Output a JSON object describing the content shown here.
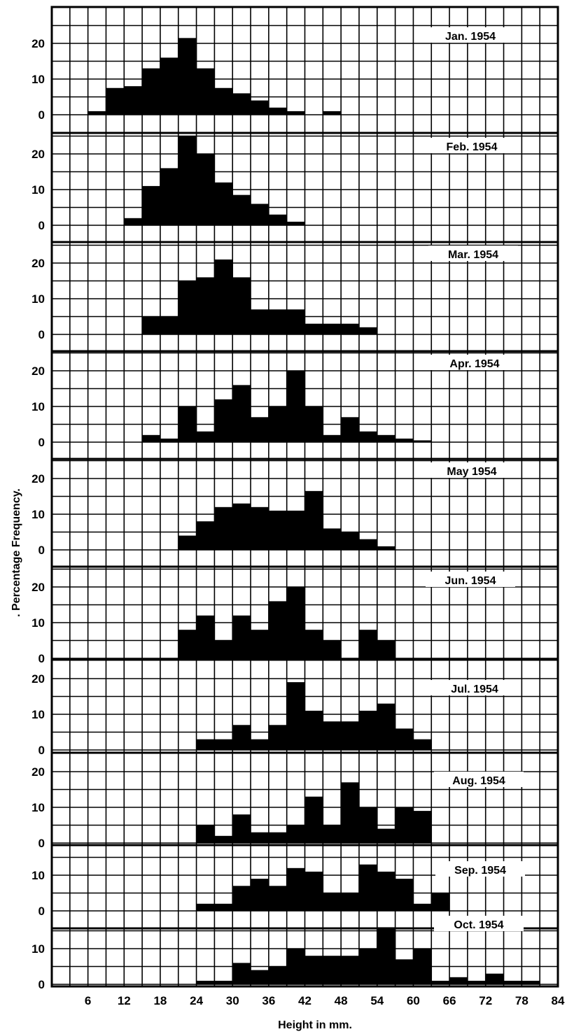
{
  "chart_data": {
    "type": "bar",
    "xlabel": "Height in mm.",
    "ylabel": ". Percentage Frequency.",
    "x_ticks": [
      "6",
      "12",
      "18",
      "24",
      "30",
      "36",
      "42",
      "48",
      "54",
      "60",
      "66",
      "72",
      "78",
      "84"
    ],
    "x_range": [
      0,
      84
    ],
    "bin_width": 3,
    "grid": true,
    "panels": [
      {
        "name": "Jan. 1954",
        "y_ticks": [
          "20",
          "10",
          "0"
        ],
        "ymax": 30,
        "x_start": 6,
        "values": [
          1,
          7.5,
          8,
          13,
          16,
          21.5,
          13,
          7.5,
          6,
          4,
          2,
          1,
          0,
          1
        ]
      },
      {
        "name": "Feb. 1954",
        "y_ticks": [
          "20",
          "10",
          "0"
        ],
        "ymax": 30,
        "x_start": 12,
        "values": [
          2,
          11,
          16,
          25,
          20,
          12,
          8.5,
          6,
          3,
          1
        ]
      },
      {
        "name": "Mar. 1954",
        "y_ticks": [
          "20",
          "10",
          "0"
        ],
        "ymax": 30,
        "x_start": 15,
        "values": [
          5,
          5,
          15,
          16,
          21,
          16,
          7,
          7,
          7,
          3,
          3,
          3,
          2
        ]
      },
      {
        "name": "Apr. 1954",
        "y_ticks": [
          "20",
          "10",
          "0"
        ],
        "ymax": 30,
        "x_start": 15,
        "values": [
          2,
          1,
          10,
          3,
          12,
          16,
          7,
          10,
          20,
          10,
          2,
          7,
          3,
          2,
          1,
          0.5
        ]
      },
      {
        "name": "May 1954",
        "y_ticks": [
          "20",
          "10",
          "0"
        ],
        "ymax": 30,
        "x_start": 21,
        "values": [
          4,
          8,
          12,
          13,
          12,
          11,
          11,
          16.5,
          6,
          5,
          3,
          1
        ]
      },
      {
        "name": "Jun. 1954",
        "y_ticks": [
          "20",
          "10",
          "0"
        ],
        "ymax": 30,
        "x_start": 21,
        "values": [
          8,
          12,
          5,
          12,
          8,
          16,
          20,
          8,
          5,
          0,
          8,
          5
        ]
      },
      {
        "name": "Jul. 1954",
        "y_ticks": [
          "20",
          "10",
          "0"
        ],
        "ymax": 24,
        "x_start": 24,
        "values": [
          3,
          3,
          7,
          3,
          7,
          19,
          11,
          8,
          8,
          11,
          13,
          6,
          3
        ]
      },
      {
        "name": "Aug. 1954",
        "y_ticks": [
          "20",
          "10",
          "0"
        ],
        "ymax": 24,
        "x_start": 24,
        "values": [
          5,
          2,
          8,
          3,
          3,
          5,
          13,
          5,
          17,
          10,
          4,
          10,
          9
        ]
      },
      {
        "name": "Sep. 1954",
        "y_ticks": [
          "10",
          "0"
        ],
        "ymax": 20,
        "x_start": 24,
        "values": [
          2,
          2,
          7,
          9,
          7,
          12,
          11,
          5,
          5,
          13,
          11,
          9,
          2,
          5
        ]
      },
      {
        "name": "Oct. 1954",
        "y_ticks": [
          "10",
          "0"
        ],
        "ymax": 20,
        "x_start": 24,
        "values": [
          1,
          1,
          6,
          4,
          5,
          10,
          8,
          8,
          8,
          10,
          16,
          7,
          10,
          1,
          2,
          1,
          3,
          1,
          1
        ]
      }
    ]
  }
}
